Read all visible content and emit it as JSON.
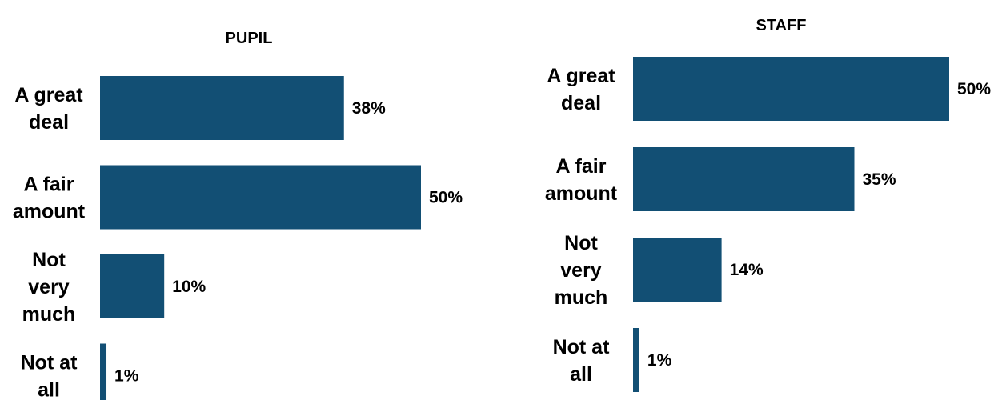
{
  "chart_data": [
    {
      "type": "bar",
      "orientation": "horizontal",
      "title": "PUPIL",
      "categories": [
        "A great deal",
        "A fair amount",
        "Not very much",
        "Not at all"
      ],
      "category_lines": [
        [
          "A great",
          "deal"
        ],
        [
          "A fair",
          "amount"
        ],
        [
          "Not",
          "very",
          "much"
        ],
        [
          "Not at",
          "all"
        ]
      ],
      "values": [
        38,
        50,
        10,
        1
      ],
      "value_labels": [
        "38%",
        "50%",
        "10%",
        "1%"
      ],
      "unit": "%",
      "xlim": [
        0,
        50
      ],
      "grid": false,
      "legend": "none",
      "color": "#124F74"
    },
    {
      "type": "bar",
      "orientation": "horizontal",
      "title": "STAFF",
      "categories": [
        "A great deal",
        "A fair amount",
        "Not very much",
        "Not at all"
      ],
      "category_lines": [
        [
          "A great",
          "deal"
        ],
        [
          "A fair",
          "amount"
        ],
        [
          "Not",
          "very",
          "much"
        ],
        [
          "Not at",
          "all"
        ]
      ],
      "values": [
        50,
        35,
        14,
        1
      ],
      "value_labels": [
        "50%",
        "35%",
        "14%",
        "1%"
      ],
      "unit": "%",
      "xlim": [
        0,
        50
      ],
      "grid": false,
      "legend": "none",
      "color": "#124F74"
    }
  ]
}
